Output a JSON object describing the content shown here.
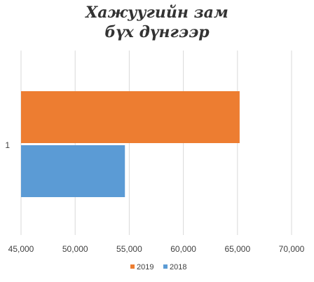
{
  "chart_data": {
    "type": "bar",
    "orientation": "horizontal",
    "title_lines": [
      "Хажуугийн зам",
      "бүх дүнгээр"
    ],
    "categories": [
      "1"
    ],
    "series": [
      {
        "name": "2019",
        "values": [
          65200
        ],
        "color": "#ED7D31"
      },
      {
        "name": "2018",
        "values": [
          54600
        ],
        "color": "#5B9BD5"
      }
    ],
    "xlim": [
      45000,
      70000
    ],
    "x_ticks": [
      45000,
      50000,
      55000,
      60000,
      65000,
      70000
    ],
    "x_tick_labels": [
      "45,000",
      "50,000",
      "55,000",
      "60,000",
      "65,000",
      "70,000"
    ],
    "grid": true,
    "legend_position": "bottom"
  }
}
